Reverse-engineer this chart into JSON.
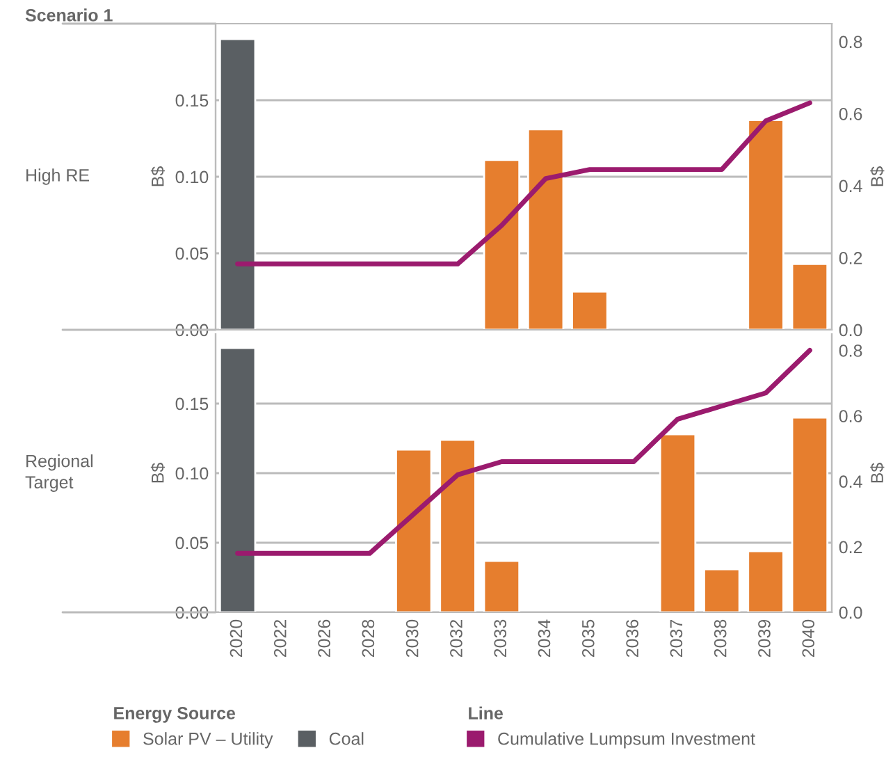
{
  "chart_data": [
    {
      "type": "bar",
      "title": "Scenario 1",
      "subtitle": "High RE",
      "ylabel": "B$",
      "y2label": "B$",
      "categories": [
        "2020",
        "2022",
        "2026",
        "2028",
        "2030",
        "2032",
        "2033",
        "2034",
        "2035",
        "2036",
        "2037",
        "2038",
        "2039",
        "2040"
      ],
      "series": [
        {
          "name": "Solar PV – Utility",
          "color": "#e67e2e",
          "values": [
            null,
            null,
            null,
            null,
            null,
            null,
            0.111,
            0.131,
            0.025,
            null,
            null,
            null,
            0.137,
            0.043
          ]
        },
        {
          "name": "Coal",
          "color": "#5a5f63",
          "values": [
            0.19,
            null,
            null,
            null,
            null,
            null,
            null,
            null,
            null,
            null,
            null,
            null,
            null,
            null
          ]
        },
        {
          "name": "Cumulative Lumpsum Investment",
          "type": "line",
          "axis": "y2",
          "color": "#9b1b6e",
          "values": [
            0.183,
            0.183,
            0.183,
            0.183,
            0.183,
            0.183,
            0.29,
            0.42,
            0.445,
            0.445,
            0.445,
            0.445,
            0.58,
            0.63
          ]
        }
      ],
      "ylim": [
        0,
        0.2
      ],
      "yticks": [
        {
          "value": 0,
          "label": "0.00"
        },
        {
          "value": 0.05,
          "label": "0.05"
        },
        {
          "value": 0.1,
          "label": "0.10"
        },
        {
          "value": 0.15,
          "label": "0.15"
        }
      ],
      "y2lim": [
        0,
        0.85
      ],
      "y2ticks": [
        {
          "value": 0,
          "label": "0.0"
        },
        {
          "value": 0.2,
          "label": "0.2"
        },
        {
          "value": 0.4,
          "label": "0.4"
        },
        {
          "value": 0.6,
          "label": "0.6"
        },
        {
          "value": 0.8,
          "label": "0.8"
        }
      ],
      "grid": "y",
      "tick_labels": "y",
      "legend": "bottom",
      "legend_title": "Energy Source",
      "annotations": [
        "Line"
      ]
    },
    {
      "type": "bar",
      "subtitle": "Regional Target",
      "ylabel": "B$",
      "y2label": "B$",
      "categories": [
        "2020",
        "2022",
        "2026",
        "2028",
        "2030",
        "2032",
        "2033",
        "2034",
        "2035",
        "2036",
        "2037",
        "2038",
        "2039",
        "2040"
      ],
      "series": [
        {
          "color": "#e67e2e",
          "values": [
            null,
            null,
            null,
            null,
            0.117,
            0.124,
            0.037,
            null,
            null,
            null,
            0.128,
            0.031,
            0.044,
            0.14
          ]
        },
        {
          "color": "#5a5f63",
          "values": [
            0.19,
            null,
            null,
            null,
            null,
            null,
            null,
            null,
            null,
            null,
            null,
            null,
            null,
            null
          ]
        },
        {
          "type": "line",
          "axis": "y2",
          "color": "#9b1b6e",
          "values": [
            0.18,
            0.18,
            0.18,
            0.18,
            0.3,
            0.42,
            0.46,
            0.46,
            0.46,
            0.46,
            0.59,
            0.63,
            0.67,
            0.8
          ]
        }
      ],
      "ylim": [
        0,
        0.2
      ],
      "yticks": [
        {
          "value": 0,
          "label": "0.00"
        },
        {
          "value": 0.05,
          "label": "0.05"
        },
        {
          "value": 0.1,
          "label": "0.10"
        },
        {
          "value": 0.15,
          "label": "0.15"
        }
      ],
      "y2lim": [
        0,
        0.85
      ],
      "y2ticks": [
        {
          "value": 0,
          "label": "0.0"
        },
        {
          "value": 0.2,
          "label": "0.2"
        },
        {
          "value": 0.4,
          "label": "0.4"
        },
        {
          "value": 0.6,
          "label": "0.6"
        },
        {
          "value": 0.8,
          "label": "0.8"
        }
      ],
      "grid": "y"
    }
  ]
}
